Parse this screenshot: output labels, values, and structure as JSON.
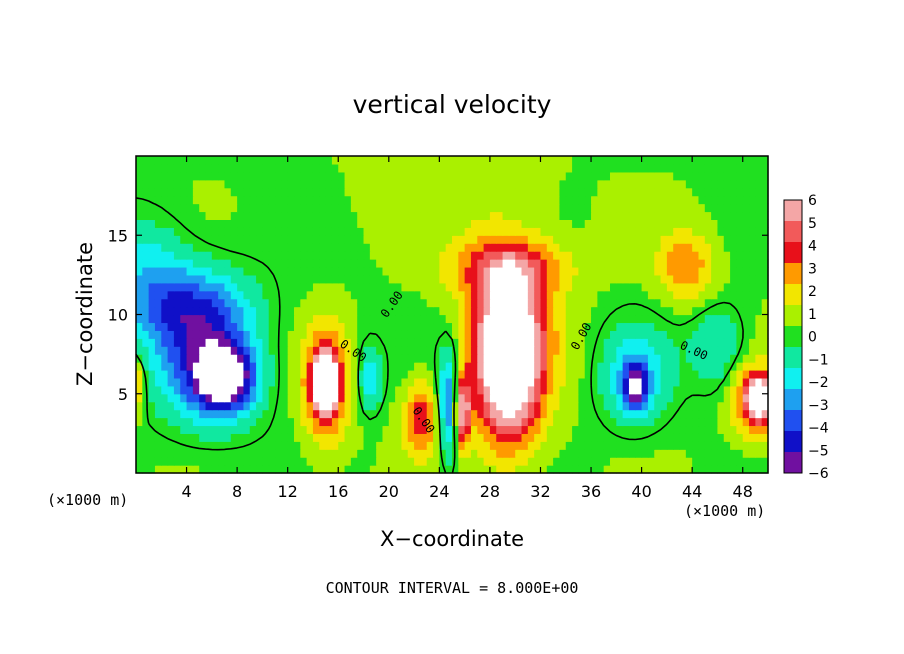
{
  "chart_data": {
    "type": "heatmap",
    "title": "vertical velocity",
    "xlabel": "X−coordinate",
    "ylabel": "Z−coordinate",
    "x_unit": "(×1000 m)",
    "x_unit_right": "(×1000 m)",
    "footer": "CONTOUR INTERVAL = 8.000E+00",
    "xlim": [
      0,
      50
    ],
    "ylim": [
      0,
      20
    ],
    "x_ticks": [
      4,
      8,
      12,
      16,
      20,
      24,
      28,
      32,
      36,
      40,
      44,
      48
    ],
    "x_tick_labels": [
      "4",
      "8",
      "12",
      "16",
      "20",
      "24",
      "28",
      "32",
      "36",
      "40",
      "44",
      "48"
    ],
    "y_ticks": [
      5,
      10,
      15
    ],
    "y_tick_labels": [
      "5",
      "10",
      "15"
    ],
    "colorbar": {
      "values": [
        6,
        5,
        4,
        3,
        2,
        1,
        0,
        -1,
        -2,
        -3,
        -4,
        -5,
        -6
      ],
      "labels": [
        "6",
        "5",
        "4",
        "3",
        "2",
        "1",
        "0",
        "−1",
        "−2",
        "−3",
        "−4",
        "−5",
        "−6"
      ],
      "colors": [
        "#f4a6a6",
        "#f25a5a",
        "#e8101a",
        "#ff9a00",
        "#f2e600",
        "#aaf000",
        "#20e020",
        "#10e8a0",
        "#10f0f0",
        "#1ea0f0",
        "#2050f0",
        "#1010c8",
        "#7010a0"
      ]
    },
    "contour_label": "0.00",
    "regions": [
      {
        "x": 5.5,
        "z": 7.0,
        "rx": 4.5,
        "rz": 4.5,
        "value": -4.5
      },
      {
        "x": 7.0,
        "z": 6.0,
        "rx": 2.5,
        "rz": 2.2,
        "value": -7.0
      },
      {
        "x": 4.0,
        "z": 10.5,
        "rx": 5.5,
        "rz": 3.0,
        "value": -3.2
      },
      {
        "x": 1.0,
        "z": 13.0,
        "rx": 4.0,
        "rz": 4.0,
        "value": -2.0
      },
      {
        "x": 15.0,
        "z": 5.5,
        "rx": 2.0,
        "rz": 4.0,
        "value": 5.0
      },
      {
        "x": 15.0,
        "z": 5.8,
        "rx": 1.0,
        "rz": 2.0,
        "value": 6.5
      },
      {
        "x": 18.5,
        "z": 6.0,
        "rx": 1.0,
        "rz": 2.2,
        "value": -3.0
      },
      {
        "x": 22.5,
        "z": 3.5,
        "rx": 1.5,
        "rz": 2.5,
        "value": 4.0
      },
      {
        "x": 24.8,
        "z": 4.5,
        "rx": 1.0,
        "rz": 4.0,
        "value": -4.5
      },
      {
        "x": 25.8,
        "z": 4.0,
        "rx": 0.7,
        "rz": 2.5,
        "value": 6.5
      },
      {
        "x": 29.5,
        "z": 8.5,
        "rx": 4.0,
        "rz": 6.5,
        "value": 4.5
      },
      {
        "x": 29.5,
        "z": 7.0,
        "rx": 2.6,
        "rz": 5.5,
        "value": 7.0
      },
      {
        "x": 29.5,
        "z": 13.0,
        "rx": 5.5,
        "rz": 2.0,
        "value": 3.0
      },
      {
        "x": 39.5,
        "z": 6.0,
        "rx": 3.0,
        "rz": 3.5,
        "value": -3.0
      },
      {
        "x": 39.5,
        "z": 5.5,
        "rx": 1.0,
        "rz": 1.5,
        "value": -5.5
      },
      {
        "x": 43.5,
        "z": 13.0,
        "rx": 2.5,
        "rz": 2.5,
        "value": 3.0
      },
      {
        "x": 46.0,
        "z": 8.0,
        "rx": 2.5,
        "rz": 3.0,
        "value": -2.0
      },
      {
        "x": 49.0,
        "z": 4.5,
        "rx": 2.0,
        "rz": 2.5,
        "value": 5.0
      },
      {
        "x": 49.3,
        "z": 4.8,
        "rx": 0.9,
        "rz": 1.2,
        "value": 6.5
      },
      {
        "x": 0.0,
        "z": 5.5,
        "rx": 0.7,
        "rz": 2.0,
        "value": 3.0
      },
      {
        "x": 25.0,
        "z": 18.0,
        "rx": 8.0,
        "rz": 3.0,
        "value": 0.8
      }
    ]
  }
}
